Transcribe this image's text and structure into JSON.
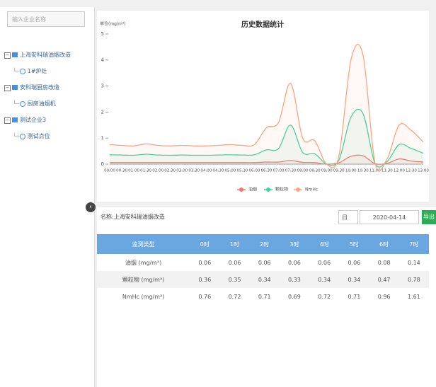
{
  "sidebar": {
    "search_placeholder": "输入企业名称",
    "tree": [
      {
        "label": "上海安科瑞油烟改造",
        "children": [
          {
            "label": "1#炉灶"
          }
        ]
      },
      {
        "label": "安科瑞厨房改造",
        "children": [
          {
            "label": "厨房油烟机"
          }
        ]
      },
      {
        "label": "测试企业3",
        "children": [
          {
            "label": "测试点位"
          }
        ]
      }
    ]
  },
  "chart_data": {
    "type": "line",
    "title": "历史数据统计",
    "y_axis_label": "单位(mg/m³)",
    "categories": [
      "00:00",
      "00:30",
      "01:00",
      "01:30",
      "02:00",
      "02:30",
      "03:00",
      "03:30",
      "04:00",
      "04:30",
      "05:00",
      "05:30",
      "06:00",
      "06:30",
      "07:00",
      "07:30",
      "08:00",
      "08:30",
      "09:00",
      "09:30",
      "10:00",
      "10:30",
      "11:00",
      "11:30",
      "12:00",
      "12:30",
      "13:00"
    ],
    "series": [
      {
        "name": "油烟",
        "color": "#f4766b",
        "values": [
          0.06,
          0.06,
          0.06,
          0.06,
          0.06,
          0.06,
          0.06,
          0.06,
          0.06,
          0.06,
          0.06,
          0.06,
          0.06,
          0.08,
          0.08,
          0.14,
          0.07,
          0.06,
          0.0,
          0.05,
          0.3,
          0.32,
          0.02,
          0.03,
          0.2,
          0.12,
          0.08
        ]
      },
      {
        "name": "颗粒物",
        "color": "#3fd3a0",
        "values": [
          0.36,
          0.35,
          0.34,
          0.38,
          0.35,
          0.34,
          0.35,
          0.34,
          0.34,
          0.35,
          0.36,
          0.35,
          0.36,
          0.55,
          0.6,
          1.5,
          0.45,
          0.4,
          0.0,
          0.15,
          1.8,
          1.95,
          0.03,
          0.1,
          0.75,
          0.6,
          0.42
        ]
      },
      {
        "name": "NmHc",
        "color": "#f9a583",
        "values": [
          0.75,
          0.72,
          0.7,
          0.78,
          0.72,
          0.7,
          0.72,
          0.7,
          0.7,
          0.72,
          0.75,
          0.72,
          0.75,
          1.4,
          1.6,
          3.1,
          1.0,
          0.9,
          0.0,
          0.3,
          4.0,
          4.2,
          0.05,
          0.2,
          1.5,
          1.3,
          0.85
        ]
      }
    ],
    "ylim": [
      0,
      5
    ],
    "yticks": [
      0,
      1,
      2,
      3,
      4,
      5
    ],
    "legend": "bottom"
  },
  "toolbar": {
    "name": "名称:上海安科瑞油烟改造",
    "period": "日",
    "date": "2020-04-14",
    "export": "导出"
  },
  "table": {
    "header": [
      "监测类型",
      "0时",
      "1时",
      "2时",
      "3时",
      "4时",
      "5时",
      "6时",
      "7时"
    ],
    "rows": [
      [
        "油烟 (mg/m³)",
        "0.06",
        "0.06",
        "0.06",
        "0.06",
        "0.06",
        "0.06",
        "0.08",
        "0.14"
      ],
      [
        "颗粒物 (mg/m³)",
        "0.36",
        "0.35",
        "0.34",
        "0.33",
        "0.34",
        "0.34",
        "0.47",
        "0.78"
      ],
      [
        "NmHc (mg/m³)",
        "0.76",
        "0.72",
        "0.71",
        "0.69",
        "0.72",
        "0.71",
        "0.96",
        "1.61"
      ]
    ]
  }
}
